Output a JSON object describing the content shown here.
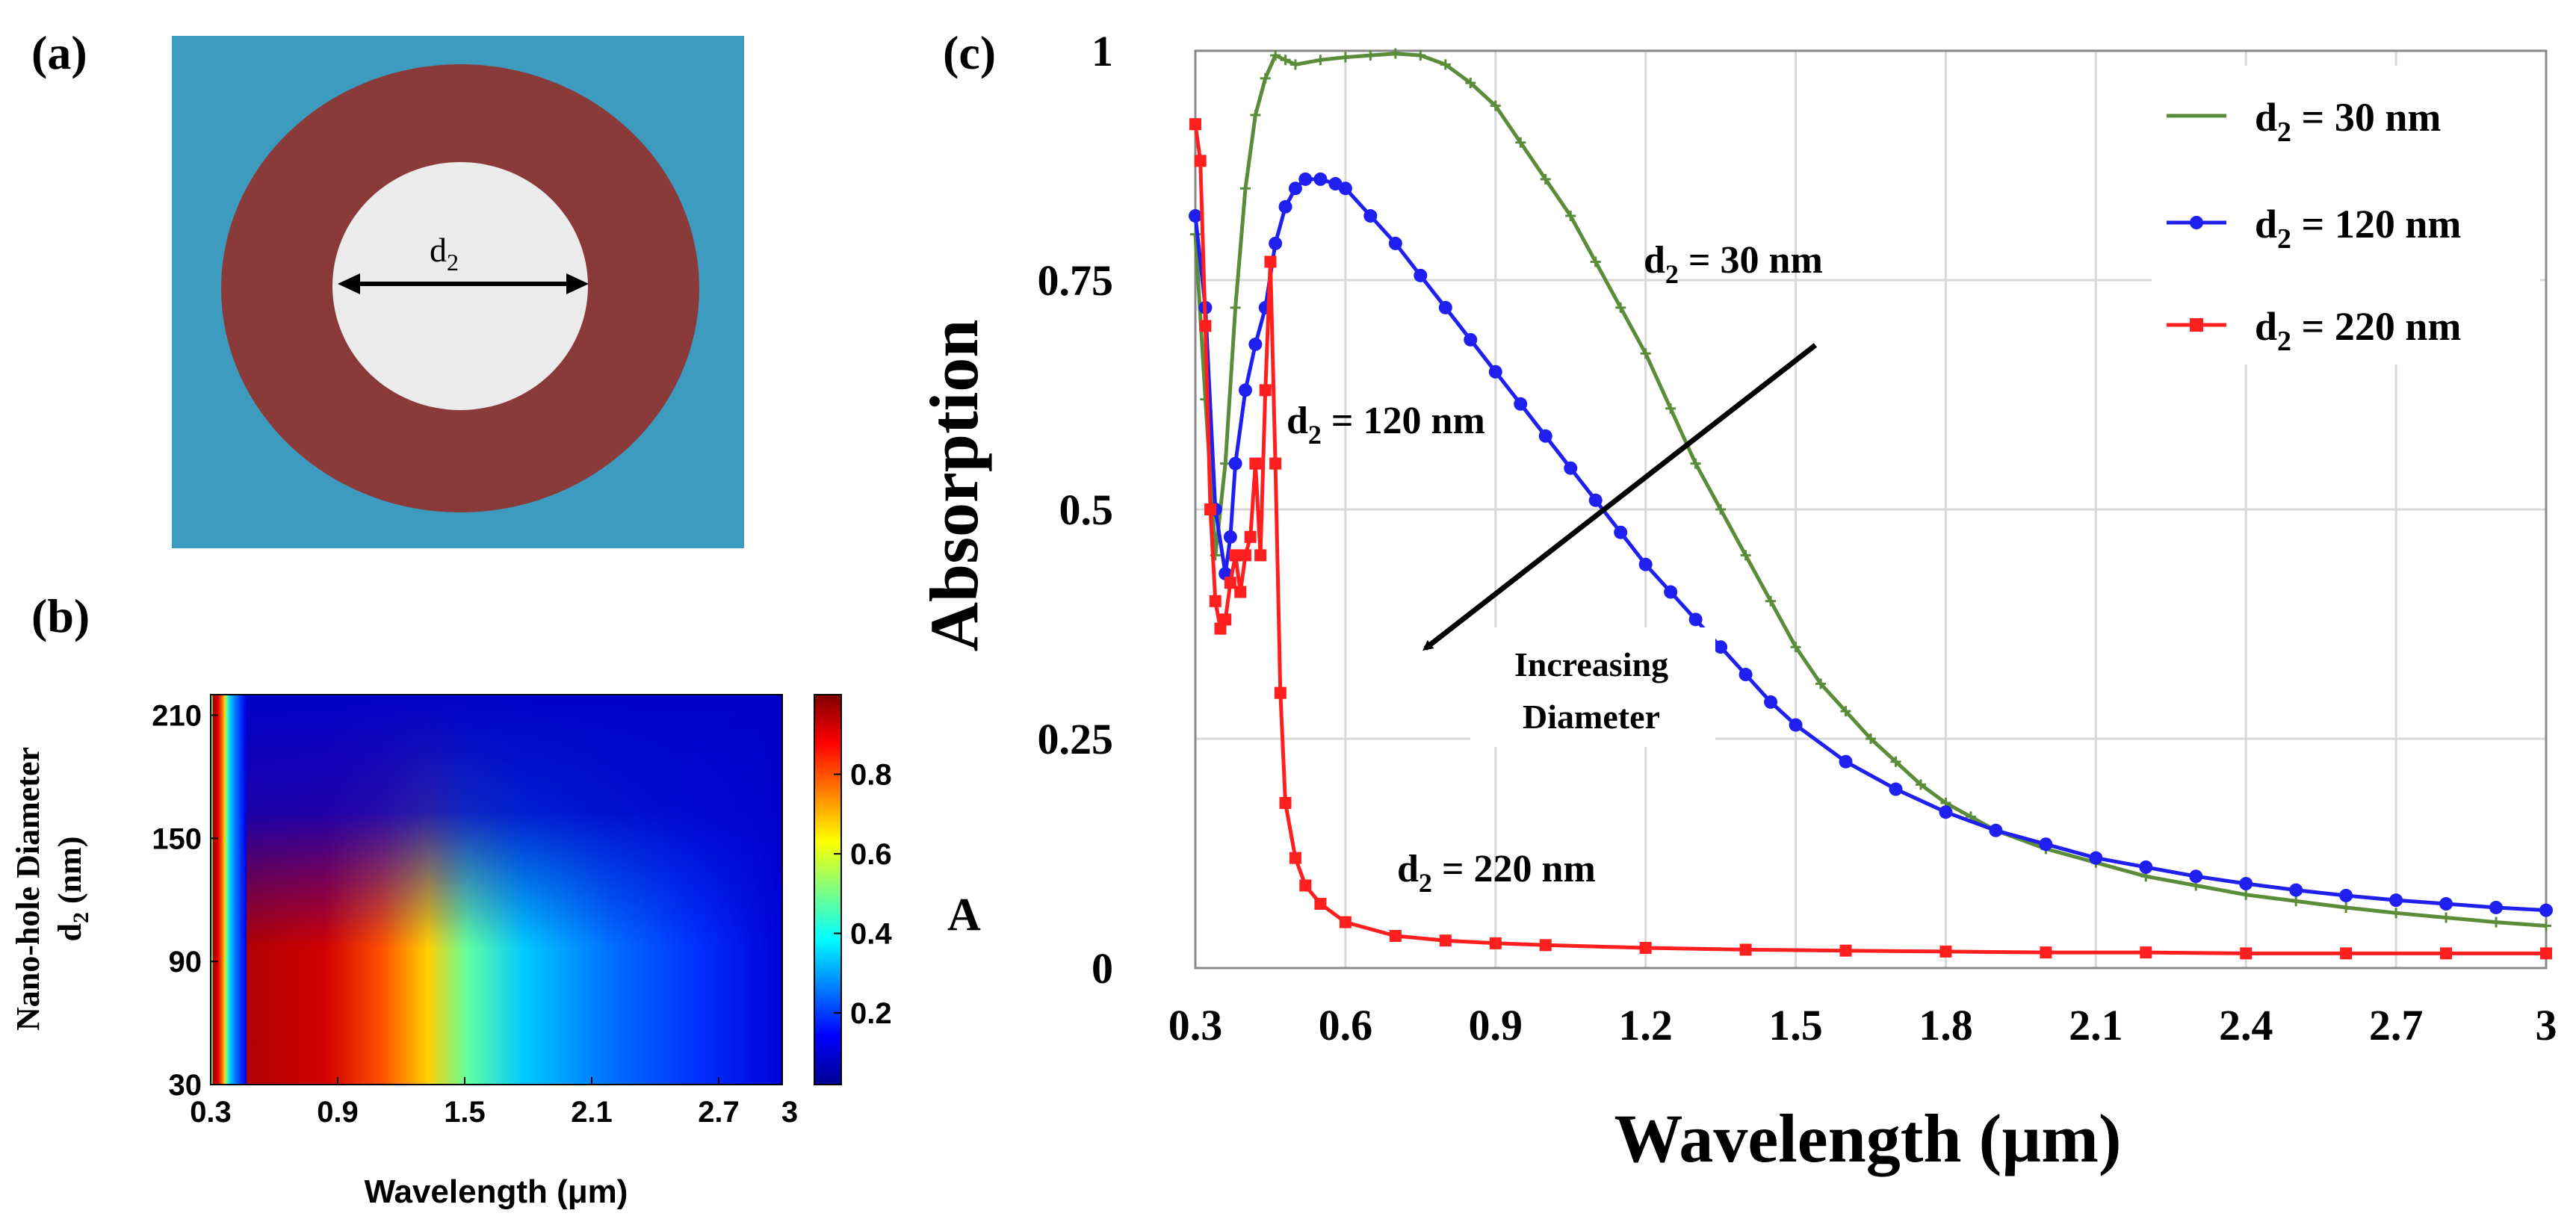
{
  "panel_labels": {
    "a": "(a)",
    "b": "(b)",
    "c": "(c)"
  },
  "panel_a": {
    "diameter_label_base": "d",
    "diameter_label_sub": "2",
    "colors": {
      "background": "#3c9bbf",
      "ring": "#8b3a3a",
      "hole": "#ebebeb"
    }
  },
  "colors": {
    "series_30": "#5b8c3a",
    "series_120": "#1f1fef",
    "series_220": "#ff1f1f",
    "grid": "#d9d9d9",
    "text": "#000000"
  },
  "chart_data": [
    {
      "id": "b",
      "type": "heatmap",
      "xlabel": "Wavelength (μm)",
      "ylabel_line1": "Nano-hole Diameter",
      "ylabel_line2_base": "d",
      "ylabel_line2_sub": "2",
      "ylabel_line2_rest": " (nm)",
      "xlim": [
        0.3,
        3
      ],
      "ylim": [
        30,
        220
      ],
      "x_ticks": [
        0.3,
        0.9,
        1.5,
        2.1,
        2.7,
        3
      ],
      "x_tick_labels": [
        "0.3",
        "0.9",
        "1.5",
        "2.1",
        "2.7",
        "3"
      ],
      "y_ticks": [
        30,
        90,
        150,
        210
      ],
      "y_tick_labels": [
        "30",
        "90",
        "150",
        "210"
      ],
      "colorbar": {
        "label": "A",
        "range": [
          0.02,
          1.0
        ],
        "ticks": [
          0.2,
          0.4,
          0.6,
          0.8
        ],
        "tick_labels": [
          "0.2",
          "0.4",
          "0.6",
          "0.8"
        ]
      },
      "description_of_values": "Absorption A vs wavelength and d2; peak (~0.95) near 0.5-0.8 μm for small d2, decreasing with wavelength and diameter"
    },
    {
      "id": "c",
      "type": "line",
      "xlabel": "Wavelength (µm)",
      "ylabel": "Absorption",
      "xlim": [
        0.3,
        3
      ],
      "ylim": [
        0,
        1
      ],
      "grid": true,
      "x_ticks": [
        0.3,
        0.6,
        0.9,
        1.2,
        1.5,
        1.8,
        2.1,
        2.4,
        2.7,
        3
      ],
      "x_tick_labels": [
        "0.3",
        "0.6",
        "0.9",
        "1.2",
        "1.5",
        "1.8",
        "2.1",
        "2.4",
        "2.7",
        "3"
      ],
      "y_ticks": [
        0,
        0.25,
        0.5,
        0.75,
        1
      ],
      "y_tick_labels": [
        "0",
        "0.25",
        "0.5",
        "0.75",
        "1"
      ],
      "legend_position": "top-right",
      "series": [
        {
          "name": "d2 = 30 nm",
          "label_base": "d",
          "label_sub": "2",
          "label_rest": " = 30 nm",
          "marker": "plus",
          "x": [
            0.3,
            0.32,
            0.34,
            0.36,
            0.38,
            0.4,
            0.42,
            0.44,
            0.46,
            0.48,
            0.5,
            0.55,
            0.6,
            0.65,
            0.7,
            0.75,
            0.8,
            0.85,
            0.9,
            0.95,
            1.0,
            1.05,
            1.1,
            1.15,
            1.2,
            1.25,
            1.3,
            1.35,
            1.4,
            1.45,
            1.5,
            1.55,
            1.6,
            1.65,
            1.7,
            1.75,
            1.8,
            1.85,
            1.9,
            2.0,
            2.1,
            2.2,
            2.3,
            2.4,
            2.5,
            2.6,
            2.7,
            2.8,
            2.9,
            3.0
          ],
          "y": [
            0.8,
            0.62,
            0.45,
            0.55,
            0.72,
            0.85,
            0.93,
            0.97,
            0.995,
            0.99,
            0.985,
            0.99,
            0.993,
            0.995,
            0.997,
            0.995,
            0.985,
            0.965,
            0.94,
            0.9,
            0.86,
            0.82,
            0.77,
            0.72,
            0.67,
            0.61,
            0.55,
            0.5,
            0.45,
            0.4,
            0.35,
            0.31,
            0.28,
            0.25,
            0.225,
            0.2,
            0.18,
            0.165,
            0.15,
            0.13,
            0.115,
            0.1,
            0.09,
            0.08,
            0.073,
            0.066,
            0.06,
            0.055,
            0.05,
            0.046
          ]
        },
        {
          "name": "d2 = 120 nm",
          "label_base": "d",
          "label_sub": "2",
          "label_rest": " = 120 nm",
          "marker": "circle",
          "x": [
            0.3,
            0.32,
            0.34,
            0.36,
            0.37,
            0.38,
            0.4,
            0.42,
            0.44,
            0.46,
            0.48,
            0.5,
            0.52,
            0.55,
            0.58,
            0.6,
            0.65,
            0.7,
            0.75,
            0.8,
            0.85,
            0.9,
            0.95,
            1.0,
            1.05,
            1.1,
            1.15,
            1.2,
            1.25,
            1.3,
            1.35,
            1.4,
            1.45,
            1.5,
            1.6,
            1.7,
            1.8,
            1.9,
            2.0,
            2.1,
            2.2,
            2.3,
            2.4,
            2.5,
            2.6,
            2.7,
            2.8,
            2.9,
            3.0
          ],
          "y": [
            0.82,
            0.72,
            0.5,
            0.43,
            0.47,
            0.55,
            0.63,
            0.68,
            0.72,
            0.79,
            0.83,
            0.85,
            0.86,
            0.86,
            0.855,
            0.85,
            0.82,
            0.79,
            0.755,
            0.72,
            0.685,
            0.65,
            0.615,
            0.58,
            0.545,
            0.51,
            0.475,
            0.44,
            0.41,
            0.38,
            0.35,
            0.32,
            0.29,
            0.265,
            0.225,
            0.195,
            0.17,
            0.15,
            0.135,
            0.12,
            0.11,
            0.1,
            0.092,
            0.085,
            0.079,
            0.074,
            0.07,
            0.066,
            0.063
          ]
        },
        {
          "name": "d2 = 220 nm",
          "label_base": "d",
          "label_sub": "2",
          "label_rest": " = 220 nm",
          "marker": "square",
          "x": [
            0.3,
            0.31,
            0.32,
            0.33,
            0.34,
            0.35,
            0.36,
            0.37,
            0.38,
            0.39,
            0.4,
            0.41,
            0.42,
            0.43,
            0.44,
            0.45,
            0.46,
            0.47,
            0.48,
            0.5,
            0.52,
            0.55,
            0.6,
            0.7,
            0.8,
            0.9,
            1.0,
            1.2,
            1.4,
            1.6,
            1.8,
            2.0,
            2.2,
            2.4,
            2.6,
            2.8,
            3.0
          ],
          "y": [
            0.92,
            0.88,
            0.7,
            0.5,
            0.4,
            0.37,
            0.38,
            0.42,
            0.45,
            0.41,
            0.45,
            0.47,
            0.55,
            0.45,
            0.63,
            0.77,
            0.55,
            0.3,
            0.18,
            0.12,
            0.09,
            0.07,
            0.05,
            0.035,
            0.03,
            0.027,
            0.025,
            0.022,
            0.02,
            0.019,
            0.018,
            0.017,
            0.017,
            0.016,
            0.016,
            0.016,
            0.016
          ]
        }
      ],
      "annotations": {
        "label_30": {
          "base": "d",
          "sub": "2",
          "rest": " = 30 nm"
        },
        "label_120": {
          "base": "d",
          "sub": "2",
          "rest": " = 120 nm"
        },
        "label_220": {
          "base": "d",
          "sub": "2",
          "rest": " = 220 nm"
        },
        "arrow_line1": "Increasing",
        "arrow_line2": "Diameter"
      }
    }
  ]
}
